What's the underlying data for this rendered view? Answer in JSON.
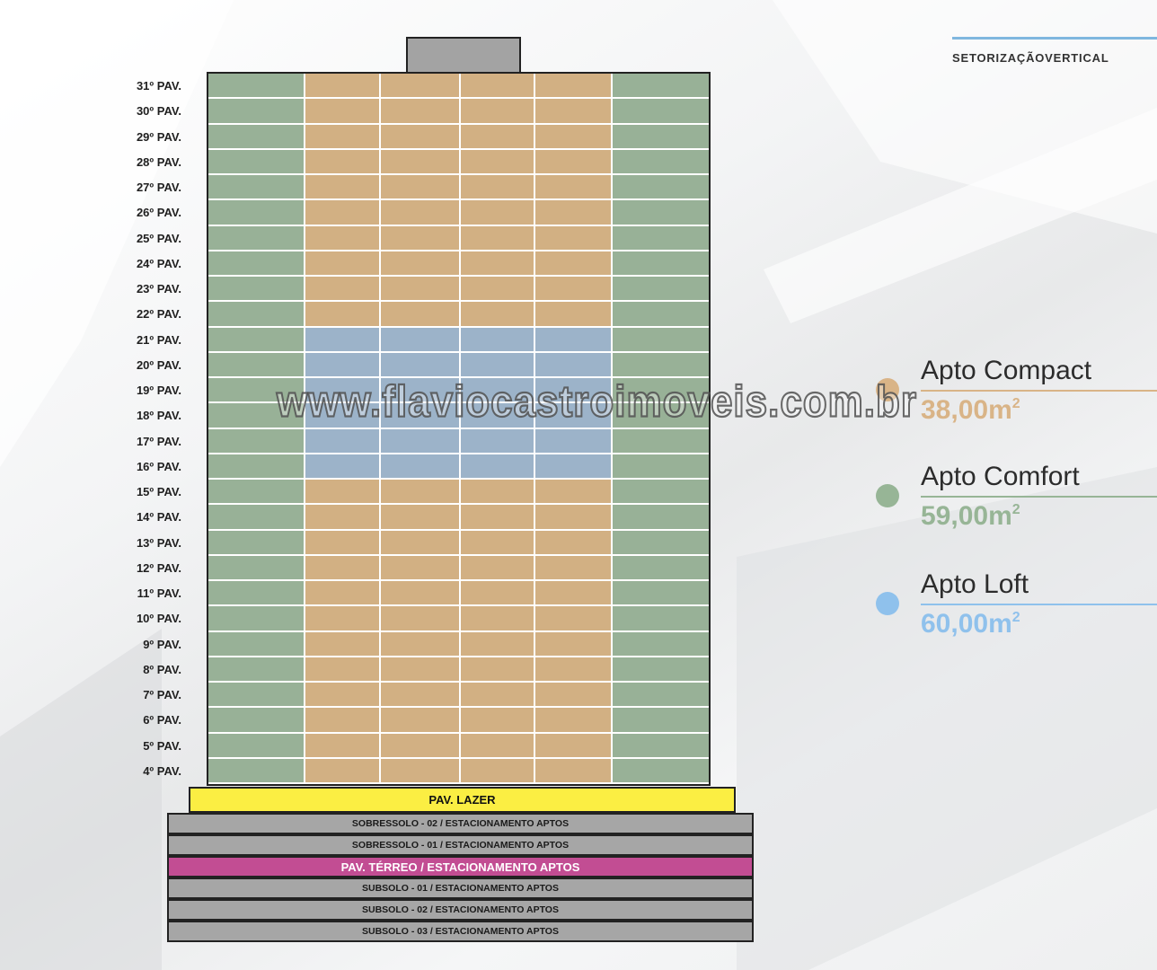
{
  "heading": "SETORIZAÇÃOVERTICAL",
  "colors": {
    "compact": "#d2b083",
    "comfort": "#98b197",
    "loft": "#9cb3c9",
    "compact_dot": "#d9b487",
    "comfort_dot": "#97b596",
    "loft_dot": "#8fc1ec",
    "lazer": "#fbee43",
    "terreo": "#c24d93",
    "parking": "#a6a6a6",
    "roof": "#a3a3a3"
  },
  "floors": [
    {
      "label": "31º PAV.",
      "units": [
        "comfort",
        "compact",
        "compact",
        "compact",
        "compact",
        "comfort"
      ]
    },
    {
      "label": "30º PAV.",
      "units": [
        "comfort",
        "compact",
        "compact",
        "compact",
        "compact",
        "comfort"
      ]
    },
    {
      "label": "29º PAV.",
      "units": [
        "comfort",
        "compact",
        "compact",
        "compact",
        "compact",
        "comfort"
      ]
    },
    {
      "label": "28º PAV.",
      "units": [
        "comfort",
        "compact",
        "compact",
        "compact",
        "compact",
        "comfort"
      ]
    },
    {
      "label": "27º PAV.",
      "units": [
        "comfort",
        "compact",
        "compact",
        "compact",
        "compact",
        "comfort"
      ]
    },
    {
      "label": "26º PAV.",
      "units": [
        "comfort",
        "compact",
        "compact",
        "compact",
        "compact",
        "comfort"
      ]
    },
    {
      "label": "25º PAV.",
      "units": [
        "comfort",
        "compact",
        "compact",
        "compact",
        "compact",
        "comfort"
      ]
    },
    {
      "label": "24º PAV.",
      "units": [
        "comfort",
        "compact",
        "compact",
        "compact",
        "compact",
        "comfort"
      ]
    },
    {
      "label": "23º PAV.",
      "units": [
        "comfort",
        "compact",
        "compact",
        "compact",
        "compact",
        "comfort"
      ]
    },
    {
      "label": "22º PAV.",
      "units": [
        "comfort",
        "compact",
        "compact",
        "compact",
        "compact",
        "comfort"
      ]
    },
    {
      "label": "21º PAV.",
      "units": [
        "comfort",
        "loft",
        "loft",
        "loft",
        "loft",
        "comfort"
      ]
    },
    {
      "label": "20º PAV.",
      "units": [
        "comfort",
        "loft",
        "loft",
        "loft",
        "loft",
        "comfort"
      ]
    },
    {
      "label": "19º PAV.",
      "units": [
        "comfort",
        "loft",
        "loft",
        "loft",
        "loft",
        "comfort"
      ]
    },
    {
      "label": "18º PAV.",
      "units": [
        "comfort",
        "loft",
        "loft",
        "loft",
        "loft",
        "comfort"
      ]
    },
    {
      "label": "17º PAV.",
      "units": [
        "comfort",
        "loft",
        "loft",
        "loft",
        "loft",
        "comfort"
      ]
    },
    {
      "label": "16º PAV.",
      "units": [
        "comfort",
        "loft",
        "loft",
        "loft",
        "loft",
        "comfort"
      ]
    },
    {
      "label": "15º PAV.",
      "units": [
        "comfort",
        "compact",
        "compact",
        "compact",
        "compact",
        "comfort"
      ]
    },
    {
      "label": "14º PAV.",
      "units": [
        "comfort",
        "compact",
        "compact",
        "compact",
        "compact",
        "comfort"
      ]
    },
    {
      "label": "13º PAV.",
      "units": [
        "comfort",
        "compact",
        "compact",
        "compact",
        "compact",
        "comfort"
      ]
    },
    {
      "label": "12º PAV.",
      "units": [
        "comfort",
        "compact",
        "compact",
        "compact",
        "compact",
        "comfort"
      ]
    },
    {
      "label": "11º PAV.",
      "units": [
        "comfort",
        "compact",
        "compact",
        "compact",
        "compact",
        "comfort"
      ]
    },
    {
      "label": "10º PAV.",
      "units": [
        "comfort",
        "compact",
        "compact",
        "compact",
        "compact",
        "comfort"
      ]
    },
    {
      "label": "9º PAV.",
      "units": [
        "comfort",
        "compact",
        "compact",
        "compact",
        "compact",
        "comfort"
      ]
    },
    {
      "label": "8º PAV.",
      "units": [
        "comfort",
        "compact",
        "compact",
        "compact",
        "compact",
        "comfort"
      ]
    },
    {
      "label": "7º PAV.",
      "units": [
        "comfort",
        "compact",
        "compact",
        "compact",
        "compact",
        "comfort"
      ]
    },
    {
      "label": "6º PAV.",
      "units": [
        "comfort",
        "compact",
        "compact",
        "compact",
        "compact",
        "comfort"
      ]
    },
    {
      "label": "5º PAV.",
      "units": [
        "comfort",
        "compact",
        "compact",
        "compact",
        "compact",
        "comfort"
      ]
    },
    {
      "label": "4º PAV.",
      "units": [
        "comfort",
        "compact",
        "compact",
        "compact",
        "compact",
        "comfort"
      ]
    }
  ],
  "podium": {
    "lazer": "PAV. LAZER",
    "levels": [
      {
        "label": "SOBRESSOLO - 02 / ESTACIONAMENTO APTOS",
        "kind": "parking"
      },
      {
        "label": "SOBRESSOLO - 01 / ESTACIONAMENTO APTOS",
        "kind": "parking"
      },
      {
        "label": "PAV. TÉRREO / ESTACIONAMENTO APTOS",
        "kind": "terreo"
      },
      {
        "label": "SUBSOLO - 01 / ESTACIONAMENTO APTOS",
        "kind": "parking"
      },
      {
        "label": "SUBSOLO - 02 / ESTACIONAMENTO APTOS",
        "kind": "parking"
      },
      {
        "label": "SUBSOLO - 03 / ESTACIONAMENTO APTOS",
        "kind": "parking"
      }
    ]
  },
  "legend": [
    {
      "key": "compact",
      "name": "Apto Compact",
      "area": "38,00m",
      "unit_sup": "2"
    },
    {
      "key": "comfort",
      "name": "Apto Comfort",
      "area": "59,00m",
      "unit_sup": "2"
    },
    {
      "key": "loft",
      "name": "Apto Loft",
      "area": "60,00m",
      "unit_sup": "2"
    }
  ],
  "watermark": "www.flaviocastroimoveis.com.br"
}
